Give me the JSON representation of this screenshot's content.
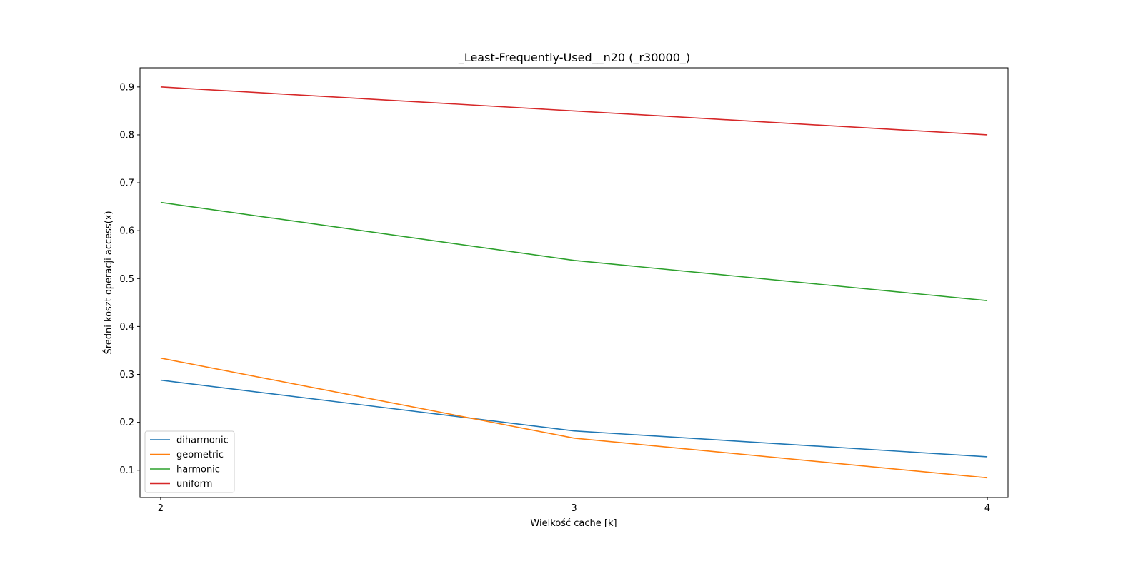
{
  "chart_data": {
    "type": "line",
    "title": "_Least-Frequently-Used__n20 (_r30000_)",
    "xlabel": "Wielkość cache [k]",
    "ylabel": "Średni koszt operacji access(x)",
    "x": [
      2,
      3,
      4
    ],
    "xticks": [
      "2",
      "3",
      "4"
    ],
    "yticks": [
      "0.1",
      "0.2",
      "0.3",
      "0.4",
      "0.5",
      "0.6",
      "0.7",
      "0.8",
      "0.9"
    ],
    "xlim": [
      1.95,
      4.05
    ],
    "ylim": [
      0.043,
      0.94
    ],
    "grid": false,
    "legend_position": "lower-left",
    "series": [
      {
        "name": "diharmonic",
        "color": "#1f77b4",
        "values": [
          0.288,
          0.182,
          0.128
        ]
      },
      {
        "name": "geometric",
        "color": "#ff7f0e",
        "values": [
          0.334,
          0.167,
          0.084
        ]
      },
      {
        "name": "harmonic",
        "color": "#2ca02c",
        "values": [
          0.659,
          0.538,
          0.454
        ]
      },
      {
        "name": "uniform",
        "color": "#d62728",
        "values": [
          0.9,
          0.85,
          0.8
        ]
      }
    ]
  }
}
